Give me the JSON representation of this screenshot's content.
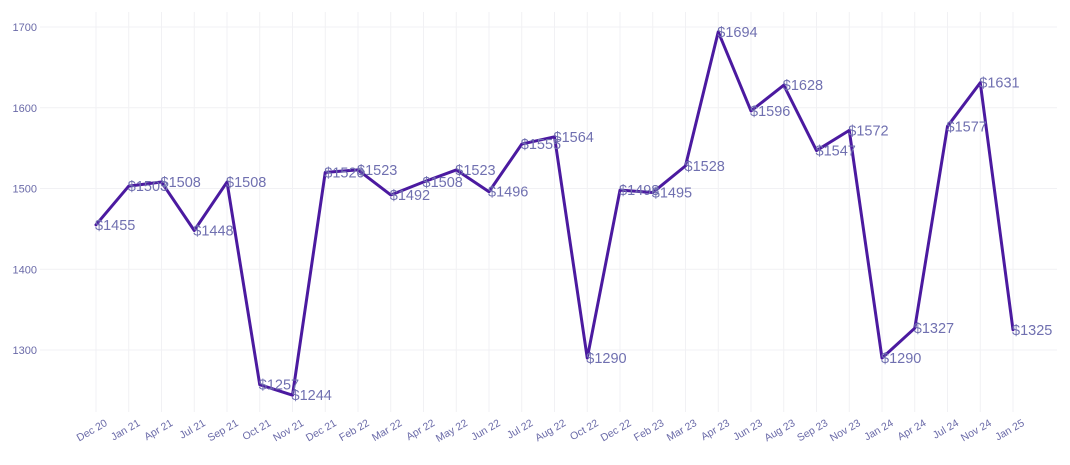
{
  "chart_data": {
    "type": "line",
    "title": "",
    "xlabel": "",
    "ylabel": "",
    "ylim": [
      1230,
      1720
    ],
    "yticks": [
      1300,
      1400,
      1500,
      1600,
      1700
    ],
    "grid": true,
    "line_color": "#4b1aa0",
    "label_color": "#7070b0",
    "categories": [
      "Dec 20",
      "Jan 21",
      "Apr 21",
      "Jul 21",
      "Sep 21",
      "Oct 21",
      "Nov 21",
      "Dec 21",
      "Feb 22",
      "Mar 22",
      "Apr 22",
      "May 22",
      "Jun 22",
      "Jul 22",
      "Aug 22",
      "Oct 22",
      "Dec 22",
      "Feb 23",
      "Mar 23",
      "Apr 23",
      "Jun 23",
      "Aug 23",
      "Sep 23",
      "Nov 23",
      "Jan 24",
      "Apr 24",
      "Jul 24",
      "Nov 24",
      "Jan 25"
    ],
    "values": [
      1455,
      1503,
      1508,
      1448,
      1508,
      1257,
      1244,
      1520,
      1523,
      1492,
      1508,
      1523,
      1496,
      1555,
      1564,
      1290,
      1498,
      1495,
      1528,
      1694,
      1596,
      1628,
      1547,
      1572,
      1290,
      1327,
      1577,
      1631,
      1325
    ],
    "data_labels": [
      "$1455",
      "$1503",
      "$1508",
      "$1448",
      "$1508",
      "$1257",
      "$1244",
      "$1520",
      "$1523",
      "$1492",
      "$1508",
      "$1523",
      "$1496",
      "$1555",
      "$1564",
      "$1290",
      "$1498",
      "$1495",
      "$1528",
      "$1694",
      "$1596",
      "$1628",
      "$1547",
      "$1572",
      "$1290",
      "$1327",
      "$1577",
      "$1631",
      "$1325"
    ]
  }
}
